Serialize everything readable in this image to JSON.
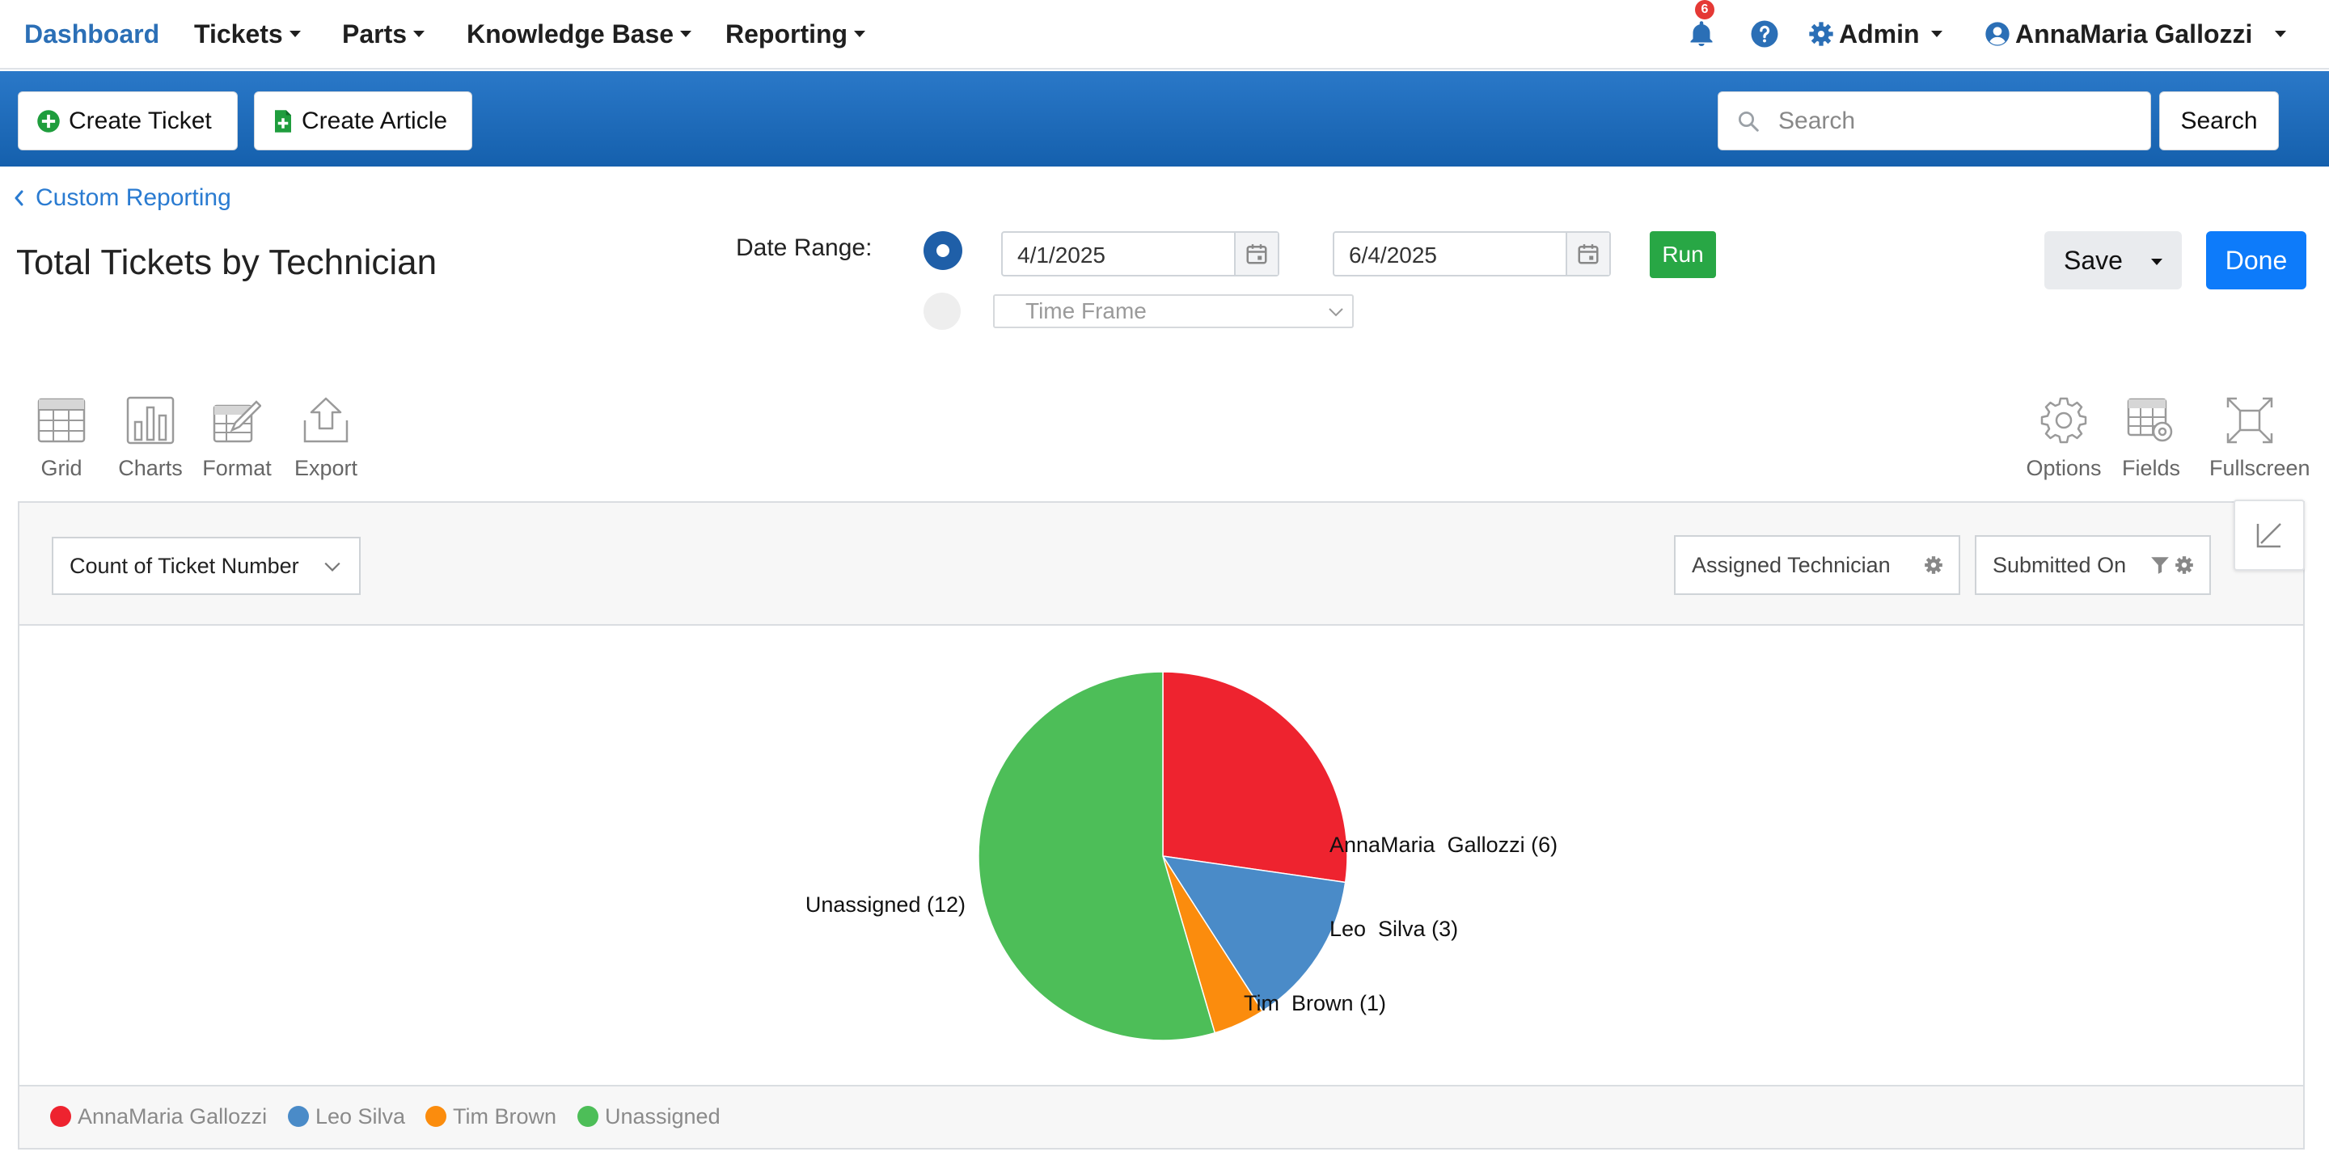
{
  "nav": {
    "brand": "Dashboard",
    "items": [
      {
        "label": "Tickets"
      },
      {
        "label": "Parts"
      },
      {
        "label": "Knowledge Base"
      },
      {
        "label": "Reporting"
      }
    ],
    "notification_count": "6",
    "admin_label": "Admin",
    "user_name": "AnnaMaria Gallozzi"
  },
  "toolbar": {
    "create_ticket": "Create Ticket",
    "create_article": "Create Article",
    "search_placeholder": "Search",
    "search_button": "Search"
  },
  "header": {
    "back_label": "Custom Reporting",
    "title": "Total Tickets by Technician",
    "date_range_label": "Date Range:",
    "date_from": "4/1/2025",
    "date_to": "6/4/2025",
    "run_label": "Run",
    "timeframe_placeholder": "Time Frame",
    "save_label": "Save",
    "done_label": "Done"
  },
  "tools_left": [
    {
      "label": "Grid",
      "icon": "grid-icon"
    },
    {
      "label": "Charts",
      "icon": "bar-chart-icon"
    },
    {
      "label": "Format",
      "icon": "format-icon"
    },
    {
      "label": "Export",
      "icon": "export-icon"
    }
  ],
  "tools_right": [
    {
      "label": "Options",
      "icon": "gear-icon"
    },
    {
      "label": "Fields",
      "icon": "fields-icon"
    },
    {
      "label": "Fullscreen",
      "icon": "fullscreen-icon"
    }
  ],
  "report": {
    "measure": "Count of Ticket Number",
    "row_field": "Assigned Technician",
    "filter_field": "Submitted On"
  },
  "chart_data": {
    "type": "pie",
    "categories": [
      "AnnaMaria  Gallozzi",
      "Leo  Silva",
      "Tim  Brown",
      "Unassigned"
    ],
    "values": [
      6,
      3,
      1,
      12
    ],
    "slice_labels": [
      "AnnaMaria  Gallozzi (6)",
      "Leo  Silva (3)",
      "Tim  Brown (1)",
      "Unassigned (12)"
    ],
    "colors": [
      "#ee232f",
      "#4a8bc8",
      "#fb8c0d",
      "#4dbe58"
    ],
    "legend_position": "bottom-left"
  }
}
